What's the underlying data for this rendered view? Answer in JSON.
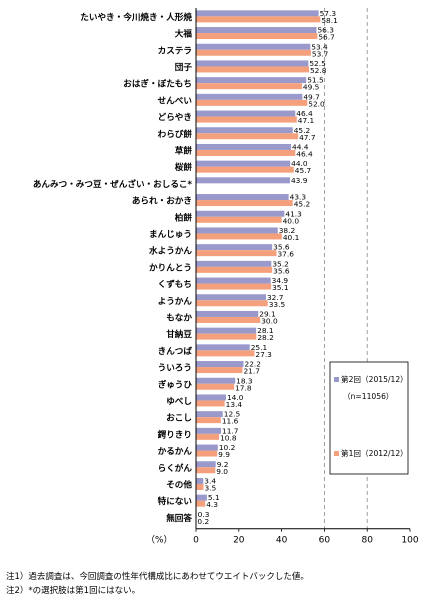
{
  "chart_data": {
    "type": "bar",
    "orientation": "horizontal",
    "categories": [
      "たいやき・今川焼き・人形焼",
      "大福",
      "カステラ",
      "団子",
      "おはぎ・ぼたもち",
      "せんべい",
      "どらやき",
      "わらび餅",
      "草餅",
      "桜餅",
      "あんみつ・みつ豆・ぜんざい・おしるこ*",
      "あられ・おかき",
      "柏餅",
      "まんじゅう",
      "水ようかん",
      "かりんとう",
      "くずもち",
      "ようかん",
      "もなか",
      "甘納豆",
      "きんつば",
      "ういろう",
      "ぎゅうひ",
      "ゆべし",
      "おこし",
      "鍔りきり",
      "かるかん",
      "らくがん",
      "その他",
      "特にない",
      "無回答"
    ],
    "series": [
      {
        "name": "第2回（2015/12）",
        "color": "#9999cc",
        "values": [
          57.3,
          56.3,
          53.4,
          52.5,
          51.5,
          49.7,
          46.4,
          45.2,
          44.4,
          44.0,
          43.9,
          43.3,
          41.3,
          38.2,
          35.6,
          35.2,
          34.9,
          32.7,
          29.1,
          28.1,
          25.1,
          22.2,
          18.3,
          14.0,
          12.5,
          11.7,
          10.2,
          9.2,
          3.4,
          5.1,
          0.3
        ]
      },
      {
        "name": "第1回（2012/12）",
        "color": "#f4a07c",
        "values": [
          58.1,
          56.7,
          53.7,
          52.8,
          49.5,
          52.0,
          47.1,
          47.7,
          46.4,
          45.7,
          null,
          45.2,
          40.0,
          40.1,
          37.6,
          35.6,
          35.1,
          33.5,
          30.0,
          28.2,
          27.3,
          21.7,
          17.8,
          13.4,
          11.6,
          10.8,
          9.9,
          9.0,
          3.5,
          4.3,
          0.2
        ]
      }
    ],
    "value_labels_2": [
      "57.3",
      "56.3",
      "53.4",
      "52.5",
      "51.5",
      "49.7",
      "46.4",
      "45.2",
      "44.4",
      "44.0",
      "43.9",
      "43.3",
      "41.3",
      "38.2",
      "35.6",
      "35.2",
      "34.9",
      "32.7",
      "29.1",
      "28.1",
      "25.1",
      "22.2",
      "18.3",
      "14.0",
      "12.5",
      "11.7",
      "10.2",
      "9.2",
      "3.4",
      "5.1",
      "0.3"
    ],
    "value_labels_1": [
      "58.1",
      "56.7",
      "53.7",
      "52.8",
      "49.5",
      "52.0",
      "47.1",
      "47.7",
      "46.4",
      "45.7",
      "",
      "45.2",
      "40.0",
      "40.1",
      "37.6",
      "35.6",
      "35.1",
      "33.5",
      "30.0",
      "28.2",
      "27.3",
      "21.7",
      "17.8",
      "13.4",
      "11.6",
      "10.8",
      "9.9",
      "9.0",
      "3.5",
      "4.3",
      "0.2"
    ],
    "xlim": [
      0,
      100
    ],
    "xticks": [
      "0",
      "20",
      "40",
      "60",
      "80",
      "100"
    ],
    "xlabel": "（%）",
    "gridlines": "dashed vertical at 60, 80",
    "legend": {
      "placement": "right",
      "entry2": "第2回（2015/12）",
      "entry2_n": "（n=11056）",
      "entry1": "第1回（2012/12）"
    }
  },
  "notes": [
    "注1）過去調査は、今回調査の性年代構成比にあわせてウエイトバックした値。",
    "注2）*の選択肢は第1回にはない。"
  ]
}
